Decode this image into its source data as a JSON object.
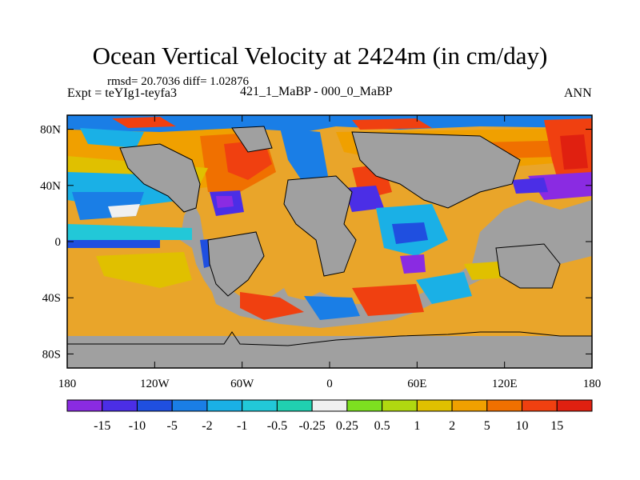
{
  "chart_data": {
    "type": "contour-map",
    "title": "Ocean Vertical Velocity at 2424m (in cm/day)",
    "stats_text": "rmsd= 20.7036 diff= 1.02876",
    "experiment_text": "Expt = teYIg1-teyfa3",
    "difference_label": "421_1_MaBP - 000_0_MaBP",
    "season": "ANN",
    "x_ticks": [
      "180",
      "120W",
      "60W",
      "0",
      "60E",
      "120E",
      "180"
    ],
    "x_tick_lons": [
      -180,
      -120,
      -60,
      0,
      60,
      120,
      180
    ],
    "y_ticks": [
      "80N",
      "40N",
      "0",
      "40S",
      "80S"
    ],
    "y_tick_lats": [
      80,
      40,
      0,
      -40,
      -80
    ],
    "xlim": [
      -180,
      180
    ],
    "ylim": [
      -90,
      90
    ],
    "colorbar": {
      "labels": [
        "-15",
        "-10",
        "-5",
        "-2",
        "-1",
        "-0.5",
        "-0.25",
        "0.25",
        "0.5",
        "1",
        "2",
        "5",
        "10",
        "15"
      ],
      "colors": [
        "#8a2be2",
        "#4b2ee6",
        "#1f4fe0",
        "#1a7ee6",
        "#1ab0e6",
        "#22c8d8",
        "#20d0b0",
        "#f0f0f0",
        "#7de020",
        "#b0d810",
        "#e0c000",
        "#f0a000",
        "#f07000",
        "#f04010",
        "#e02010"
      ]
    }
  },
  "colors": {
    "land": "#a0a0a0",
    "ocean_base": "#e9a52a"
  }
}
